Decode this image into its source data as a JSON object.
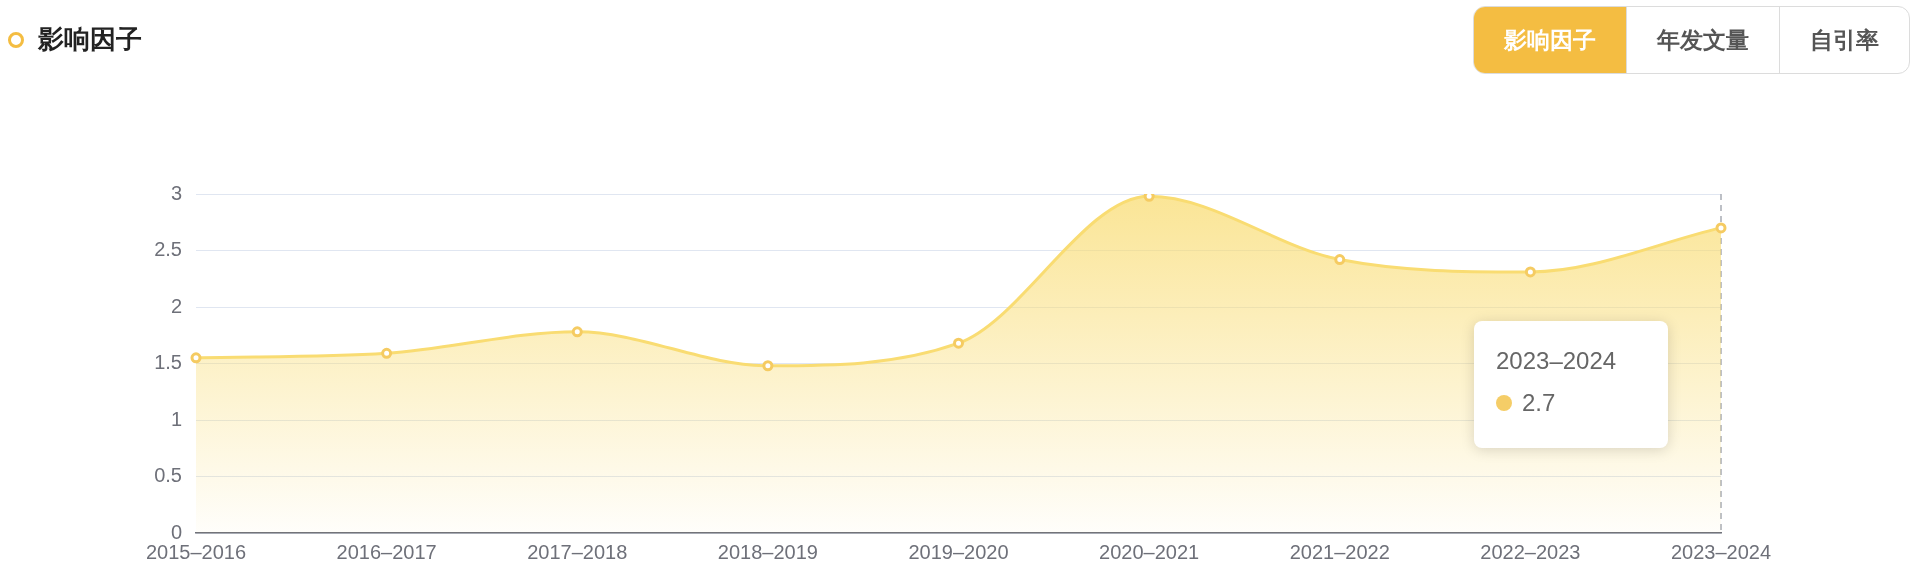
{
  "chart_data": {
    "type": "area",
    "title": "影响因子",
    "categories": [
      "2015–2016",
      "2016–2017",
      "2017–2018",
      "2018–2019",
      "2019–2020",
      "2020–2021",
      "2021–2022",
      "2022–2023",
      "2023–2024"
    ],
    "series": [
      {
        "color": "#f9dc72",
        "values": [
          1.55,
          1.59,
          1.78,
          1.48,
          1.68,
          2.98,
          2.42,
          2.31,
          2.7
        ]
      }
    ],
    "ylim": [
      0,
      3
    ],
    "yticks": [
      0,
      0.5,
      1,
      1.5,
      2,
      2.5,
      3
    ],
    "grid": "y",
    "legend": false,
    "marker": "circle",
    "line_style": "solid",
    "ref_lines": [
      {
        "axis": "x",
        "value": "2023–2024",
        "color": "#a8acb4",
        "line_style": "dashed"
      }
    ],
    "annotations": [
      "影响因子",
      "年发文量",
      "自引率",
      "2023–2024",
      "2.7"
    ]
  }
}
